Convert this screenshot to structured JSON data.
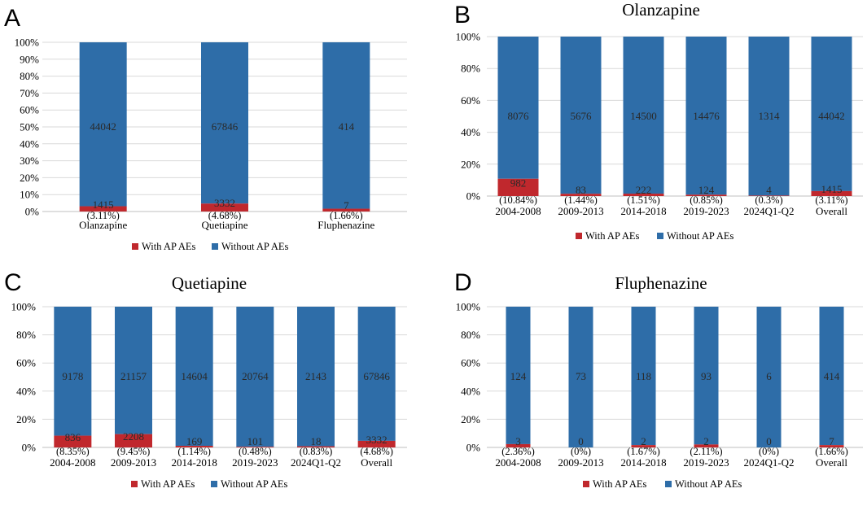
{
  "colors": {
    "with": "#c0282d",
    "without": "#2e6da8"
  },
  "chart_data": [
    {
      "panel": "A",
      "type": "bar",
      "stacked": "percent",
      "title": "",
      "categories": [
        "Olanzapine",
        "Quetiapine",
        "Fluphenazine"
      ],
      "series": [
        {
          "name": "With AP AEs",
          "values": [
            1415,
            3332,
            7
          ],
          "percent_labels": [
            "(3.11%)",
            "(4.68%)",
            "(1.66%)"
          ]
        },
        {
          "name": "Without AP AEs",
          "values": [
            44042,
            67846,
            414
          ]
        }
      ],
      "y_ticks": [
        "0%",
        "10%",
        "20%",
        "30%",
        "40%",
        "50%",
        "60%",
        "70%",
        "80%",
        "90%",
        "100%"
      ],
      "ylim": [
        0,
        100
      ],
      "legend": [
        "With AP AEs",
        "Without AP AEs"
      ]
    },
    {
      "panel": "B",
      "type": "bar",
      "stacked": "percent",
      "title": "Olanzapine",
      "categories": [
        "2004-2008",
        "2009-2013",
        "2014-2018",
        "2019-2023",
        "2024Q1-Q2",
        "Overall"
      ],
      "series": [
        {
          "name": "With AP AEs",
          "values": [
            982,
            83,
            222,
            124,
            4,
            1415
          ],
          "percent_labels": [
            "(10.84%)",
            "(1.44%)",
            "(1.51%)",
            "(0.85%)",
            "(0.3%)",
            "(3.11%)"
          ]
        },
        {
          "name": "Without AP AEs",
          "values": [
            8076,
            5676,
            14500,
            14476,
            1314,
            44042
          ]
        }
      ],
      "y_ticks": [
        "0%",
        "20%",
        "40%",
        "60%",
        "80%",
        "100%"
      ],
      "ylim": [
        0,
        100
      ],
      "legend": [
        "With AP AEs",
        "Without AP AEs"
      ]
    },
    {
      "panel": "C",
      "type": "bar",
      "stacked": "percent",
      "title": "Quetiapine",
      "categories": [
        "2004-2008",
        "2009-2013",
        "2014-2018",
        "2019-2023",
        "2024Q1-Q2",
        "Overall"
      ],
      "series": [
        {
          "name": "With AP AEs",
          "values": [
            836,
            2208,
            169,
            101,
            18,
            3332
          ],
          "percent_labels": [
            "(8.35%)",
            "(9.45%)",
            "(1.14%)",
            "(0.48%)",
            "(0.83%)",
            "(4.68%)"
          ]
        },
        {
          "name": "Without AP AEs",
          "values": [
            9178,
            21157,
            14604,
            20764,
            2143,
            67846
          ]
        }
      ],
      "y_ticks": [
        "0%",
        "20%",
        "40%",
        "60%",
        "80%",
        "100%"
      ],
      "ylim": [
        0,
        100
      ],
      "legend": [
        "With AP AEs",
        "Without AP AEs"
      ]
    },
    {
      "panel": "D",
      "type": "bar",
      "stacked": "percent",
      "title": "Fluphenazine",
      "categories": [
        "2004-2008",
        "2009-2013",
        "2014-2018",
        "2019-2023",
        "2024Q1-Q2",
        "Overall"
      ],
      "series": [
        {
          "name": "With AP AEs",
          "values": [
            3,
            0,
            2,
            2,
            0,
            7
          ],
          "percent_labels": [
            "(2.36%)",
            "(0%)",
            "(1.67%)",
            "(2.11%)",
            "(0%)",
            "(1.66%)"
          ]
        },
        {
          "name": "Without AP AEs",
          "values": [
            124,
            73,
            118,
            93,
            6,
            414
          ]
        }
      ],
      "y_ticks": [
        "0%",
        "20%",
        "40%",
        "60%",
        "80%",
        "100%"
      ],
      "ylim": [
        0,
        100
      ],
      "legend": [
        "With AP AEs",
        "Without AP AEs"
      ]
    }
  ]
}
